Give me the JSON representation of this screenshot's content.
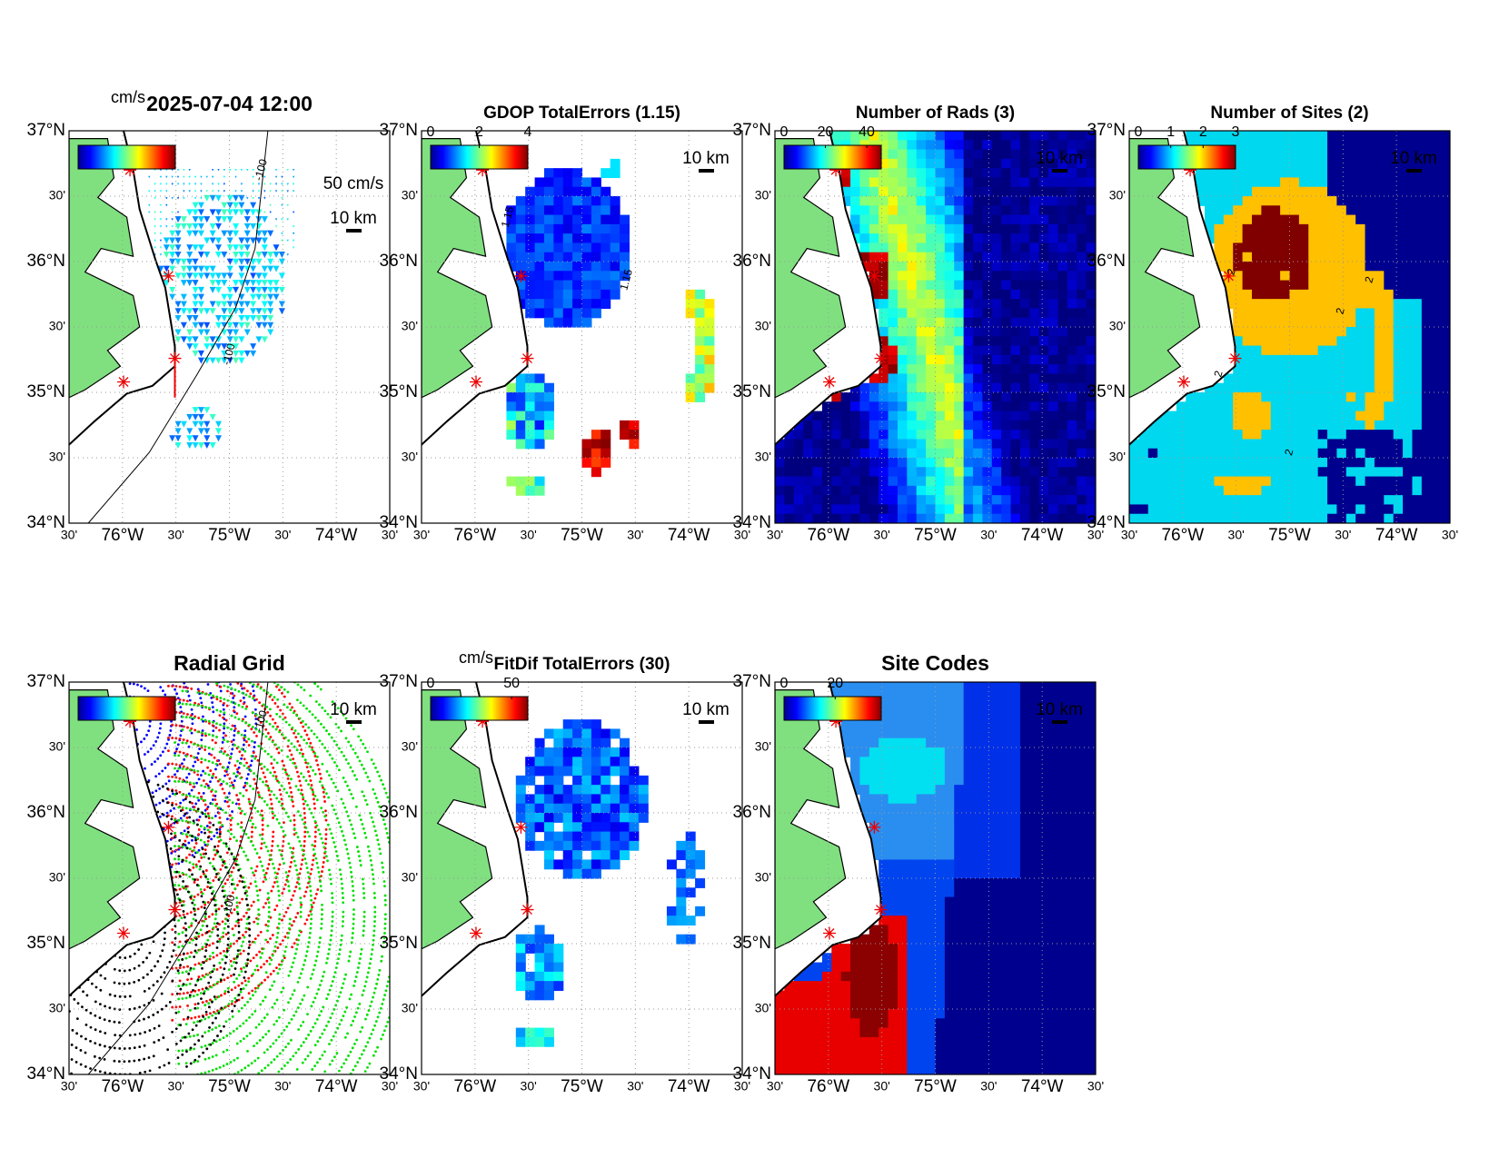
{
  "map_axes": {
    "lonlim": [
      -76.5,
      -73.5
    ],
    "latlim": [
      34,
      37
    ],
    "lon_ticks": [
      {
        "value": -76.5,
        "label": "30'"
      },
      {
        "value": -76,
        "label": "76°W"
      },
      {
        "value": -75.5,
        "label": "30'"
      },
      {
        "value": -75,
        "label": "75°W"
      },
      {
        "value": -74.5,
        "label": "30'"
      },
      {
        "value": -74,
        "label": "74°W"
      },
      {
        "value": -73.5,
        "label": "30'"
      }
    ],
    "lat_ticks": [
      {
        "value": 34,
        "label": "34°N"
      },
      {
        "value": 34.5,
        "label": "30'"
      },
      {
        "value": 35,
        "label": "35°N"
      },
      {
        "value": 35.5,
        "label": "30'"
      },
      {
        "value": 36,
        "label": "36°N"
      },
      {
        "value": 36.5,
        "label": "30'"
      },
      {
        "value": 37,
        "label": "37°N"
      }
    ]
  },
  "panels": [
    {
      "title": "2025-07-04 12:00",
      "units": "cm/s",
      "reference_arrow": "50 cm/s",
      "scale": "10 km",
      "contour_label": "-100"
    },
    {
      "title": "GDOP TotalErrors (1.15)",
      "colorbar": {
        "clim": [
          0,
          4
        ],
        "ticks": [
          0,
          2,
          4
        ]
      },
      "scale": "10 km",
      "contour_label": "1.15"
    },
    {
      "title": "Number of Rads (3)",
      "colorbar": {
        "clim": [
          0,
          47
        ],
        "ticks": [
          0,
          20,
          40
        ]
      },
      "scale": "10 km"
    },
    {
      "title": "Number of Sites (2)",
      "colorbar": {
        "clim": [
          0,
          3
        ],
        "ticks": [
          0,
          1,
          2,
          3
        ]
      },
      "scale": "10 km",
      "contour_label": "2"
    },
    {
      "title": "Radial Grid",
      "scale": "10 km",
      "contour_label": "-100"
    },
    {
      "title": "FitDif TotalErrors (30)",
      "units": "cm/s",
      "colorbar": {
        "clim": [
          0,
          60
        ],
        "ticks": [
          0,
          50
        ]
      },
      "scale": "10 km"
    },
    {
      "title": "Site Codes",
      "colorbar": {
        "clim": [
          0,
          38
        ],
        "ticks": [
          0,
          20
        ]
      },
      "scale": "10 km"
    }
  ]
}
